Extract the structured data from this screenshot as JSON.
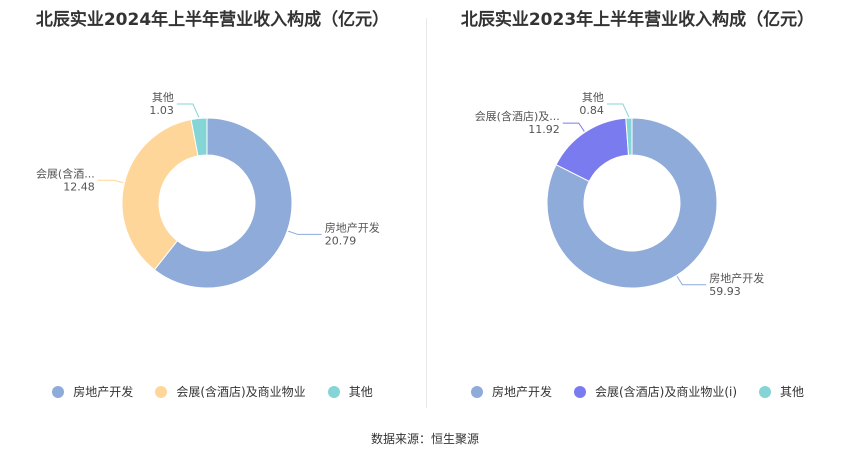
{
  "source_note": "数据来源：恒生聚源",
  "chart_data": [
    {
      "type": "pie",
      "donut": true,
      "title": "北辰实业2024年上半年营业收入构成（亿元）",
      "legend_position": "bottom",
      "legend": [
        {
          "label": "房地产开发",
          "color": "#8eabd9"
        },
        {
          "label": "会展(含酒店)及商业物业",
          "color": "#ffd699"
        },
        {
          "label": "其他",
          "color": "#85d4d6"
        }
      ],
      "slices": [
        {
          "label": "房地产开发",
          "value": 20.79,
          "value_text": "20.79",
          "color": "#8eabd9"
        },
        {
          "label": "会展(含酒...",
          "value": 12.48,
          "value_text": "12.48",
          "color": "#ffd699"
        },
        {
          "label": "其他",
          "value": 1.03,
          "value_text": "1.03",
          "color": "#85d4d6"
        }
      ]
    },
    {
      "type": "pie",
      "donut": true,
      "title": "北辰实业2023年上半年营业收入构成（亿元）",
      "legend_position": "bottom",
      "legend": [
        {
          "label": "房地产开发",
          "color": "#8eabd9"
        },
        {
          "label": "会展(含酒店)及商业物业(i)",
          "color": "#7b7bf0"
        },
        {
          "label": "其他",
          "color": "#85d4d6"
        }
      ],
      "slices": [
        {
          "label": "房地产开发",
          "value": 59.93,
          "value_text": "59.93",
          "color": "#8eabd9"
        },
        {
          "label": "会展(含酒店)及...",
          "value": 11.92,
          "value_text": "11.92",
          "color": "#7b7bf0"
        },
        {
          "label": "其他",
          "value": 0.84,
          "value_text": "0.84",
          "color": "#85d4d6"
        }
      ]
    }
  ]
}
